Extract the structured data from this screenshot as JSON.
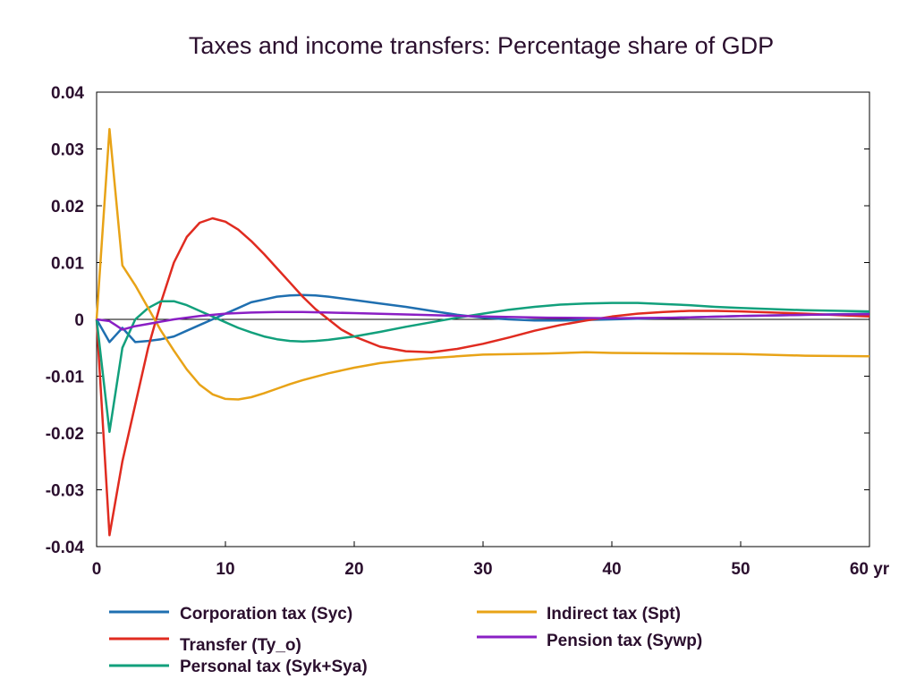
{
  "chart_data": {
    "type": "line",
    "title": "Taxes and income transfers: Percentage share of GDP",
    "xlabel": "",
    "ylabel": "",
    "xlim": [
      0,
      60
    ],
    "ylim": [
      -0.04,
      0.04
    ],
    "x_ticks": [
      "0",
      "10",
      "20",
      "30",
      "40",
      "50",
      "60 yr"
    ],
    "y_ticks": [
      "0.04",
      "0.03",
      "0.02",
      "0.01",
      "0",
      "-0.01",
      "-0.02",
      "-0.03",
      "-0.04"
    ],
    "grid": false,
    "legend_position": "bottom",
    "series": [
      {
        "name": "Corporation tax (Syc)",
        "color": "#1f6fb0",
        "points": [
          [
            0,
            0
          ],
          [
            1,
            -0.004
          ],
          [
            2,
            -0.0015
          ],
          [
            3,
            -0.004
          ],
          [
            4,
            -0.0038
          ],
          [
            5,
            -0.0035
          ],
          [
            6,
            -0.003
          ],
          [
            7,
            -0.002
          ],
          [
            8,
            -0.001
          ],
          [
            9,
            0
          ],
          [
            10,
            0.001
          ],
          [
            11,
            0.002
          ],
          [
            12,
            0.003
          ],
          [
            13,
            0.0035
          ],
          [
            14,
            0.004
          ],
          [
            15,
            0.0042
          ],
          [
            16,
            0.0043
          ],
          [
            17,
            0.0042
          ],
          [
            18,
            0.004
          ],
          [
            19,
            0.0037
          ],
          [
            20,
            0.0034
          ],
          [
            22,
            0.0028
          ],
          [
            24,
            0.0022
          ],
          [
            26,
            0.0015
          ],
          [
            28,
            0.0008
          ],
          [
            30,
            0.0003
          ],
          [
            32,
            0
          ],
          [
            34,
            -0.0002
          ],
          [
            36,
            -0.0002
          ],
          [
            40,
            0
          ],
          [
            45,
            0.0003
          ],
          [
            50,
            0.0006
          ],
          [
            55,
            0.0008
          ],
          [
            60,
            0.001
          ]
        ]
      },
      {
        "name": "Transfer (Ty_o)",
        "color": "#e02b20",
        "points": [
          [
            0,
            0
          ],
          [
            1,
            -0.038
          ],
          [
            2,
            -0.025
          ],
          [
            3,
            -0.015
          ],
          [
            4,
            -0.005
          ],
          [
            5,
            0.003
          ],
          [
            6,
            0.01
          ],
          [
            7,
            0.0145
          ],
          [
            8,
            0.017
          ],
          [
            9,
            0.0178
          ],
          [
            10,
            0.0172
          ],
          [
            11,
            0.0158
          ],
          [
            12,
            0.0138
          ],
          [
            13,
            0.0115
          ],
          [
            14,
            0.009
          ],
          [
            15,
            0.0065
          ],
          [
            16,
            0.004
          ],
          [
            17,
            0.0018
          ],
          [
            18,
            0
          ],
          [
            19,
            -0.0018
          ],
          [
            20,
            -0.003
          ],
          [
            22,
            -0.0048
          ],
          [
            24,
            -0.0056
          ],
          [
            26,
            -0.0058
          ],
          [
            28,
            -0.0052
          ],
          [
            30,
            -0.0043
          ],
          [
            32,
            -0.0032
          ],
          [
            34,
            -0.002
          ],
          [
            36,
            -0.001
          ],
          [
            38,
            -0.0002
          ],
          [
            40,
            0.0005
          ],
          [
            42,
            0.001
          ],
          [
            44,
            0.0013
          ],
          [
            46,
            0.0015
          ],
          [
            48,
            0.0015
          ],
          [
            50,
            0.0014
          ],
          [
            55,
            0.001
          ],
          [
            60,
            0.0005
          ]
        ]
      },
      {
        "name": "Personal tax (Syk+Sya)",
        "color": "#12a07c",
        "points": [
          [
            0,
            0
          ],
          [
            1,
            -0.0198
          ],
          [
            2,
            -0.005
          ],
          [
            3,
            0
          ],
          [
            4,
            0.002
          ],
          [
            5,
            0.0032
          ],
          [
            6,
            0.0032
          ],
          [
            7,
            0.0025
          ],
          [
            8,
            0.0015
          ],
          [
            9,
            0.0005
          ],
          [
            10,
            -0.0005
          ],
          [
            11,
            -0.0015
          ],
          [
            12,
            -0.0023
          ],
          [
            13,
            -0.003
          ],
          [
            14,
            -0.0035
          ],
          [
            15,
            -0.0038
          ],
          [
            16,
            -0.0039
          ],
          [
            17,
            -0.0038
          ],
          [
            18,
            -0.0036
          ],
          [
            19,
            -0.0033
          ],
          [
            20,
            -0.003
          ],
          [
            22,
            -0.0022
          ],
          [
            24,
            -0.0013
          ],
          [
            26,
            -0.0005
          ],
          [
            28,
            0.0003
          ],
          [
            30,
            0.001
          ],
          [
            32,
            0.0017
          ],
          [
            34,
            0.0022
          ],
          [
            36,
            0.0026
          ],
          [
            38,
            0.0028
          ],
          [
            40,
            0.0029
          ],
          [
            42,
            0.0029
          ],
          [
            44,
            0.0027
          ],
          [
            46,
            0.0025
          ],
          [
            48,
            0.0022
          ],
          [
            50,
            0.002
          ],
          [
            55,
            0.0016
          ],
          [
            60,
            0.0014
          ]
        ]
      },
      {
        "name": "Indirect tax (Spt)",
        "color": "#e8a317",
        "points": [
          [
            0,
            0
          ],
          [
            1,
            0.0335
          ],
          [
            2,
            0.0095
          ],
          [
            3,
            0.006
          ],
          [
            4,
            0.002
          ],
          [
            5,
            -0.002
          ],
          [
            6,
            -0.0055
          ],
          [
            7,
            -0.0088
          ],
          [
            8,
            -0.0115
          ],
          [
            9,
            -0.0132
          ],
          [
            10,
            -0.014
          ],
          [
            11,
            -0.0141
          ],
          [
            12,
            -0.0137
          ],
          [
            13,
            -0.013
          ],
          [
            14,
            -0.0122
          ],
          [
            15,
            -0.0114
          ],
          [
            16,
            -0.0107
          ],
          [
            18,
            -0.0095
          ],
          [
            20,
            -0.0085
          ],
          [
            22,
            -0.0077
          ],
          [
            24,
            -0.0072
          ],
          [
            26,
            -0.0068
          ],
          [
            28,
            -0.0065
          ],
          [
            30,
            -0.0062
          ],
          [
            35,
            -0.006
          ],
          [
            38,
            -0.0058
          ],
          [
            40,
            -0.0059
          ],
          [
            45,
            -0.006
          ],
          [
            50,
            -0.0061
          ],
          [
            55,
            -0.0064
          ],
          [
            60,
            -0.0065
          ]
        ]
      },
      {
        "name": "Pension tax (Sywp)",
        "color": "#8a1fc4",
        "points": [
          [
            0,
            0
          ],
          [
            1,
            -0.0003
          ],
          [
            2,
            -0.0018
          ],
          [
            3,
            -0.0012
          ],
          [
            4,
            -0.0008
          ],
          [
            5,
            -0.0004
          ],
          [
            6,
            0
          ],
          [
            8,
            0.0006
          ],
          [
            10,
            0.001
          ],
          [
            12,
            0.0012
          ],
          [
            14,
            0.0013
          ],
          [
            16,
            0.0013
          ],
          [
            18,
            0.0012
          ],
          [
            20,
            0.0011
          ],
          [
            25,
            0.0008
          ],
          [
            30,
            0.0005
          ],
          [
            35,
            0.0003
          ],
          [
            40,
            0.0002
          ],
          [
            45,
            0.0003
          ],
          [
            50,
            0.0006
          ],
          [
            55,
            0.0008
          ],
          [
            60,
            0.0009
          ]
        ]
      }
    ]
  }
}
